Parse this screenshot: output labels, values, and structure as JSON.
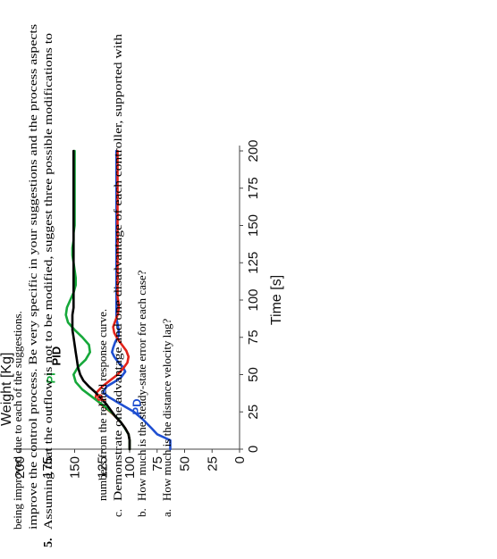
{
  "chart_data": {
    "type": "line",
    "ylabel": "Weight [Kg]",
    "xlabel": "Time [s]",
    "xlim": [
      0,
      200
    ],
    "ylim": [
      0,
      200
    ],
    "x_ticks": [
      "0",
      "25",
      "50",
      "75",
      "100",
      "125",
      "150",
      "175",
      "200"
    ],
    "y_ticks": [
      "0",
      "25",
      "50",
      "75",
      "100",
      "125",
      "150",
      "175",
      "200"
    ],
    "series": [
      {
        "name": "PD",
        "color": "#1f4fd1",
        "x": [
          0,
          6,
          10,
          14,
          20,
          25,
          28,
          31,
          35,
          38,
          42,
          45,
          48,
          52,
          55,
          58,
          62,
          65,
          68,
          72,
          76,
          80,
          84,
          88,
          92,
          96,
          100,
          110,
          120,
          130,
          140,
          150,
          160,
          175,
          190,
          200
        ],
        "y": [
          63,
          63,
          75,
          80,
          88,
          96,
          103,
          110,
          119,
          124,
          121,
          114,
          108,
          104,
          106,
          110,
          114,
          116,
          115,
          113,
          110,
          110,
          111,
          112,
          112,
          112,
          112,
          112,
          112,
          112,
          112,
          112,
          112,
          112,
          112,
          112
        ]
      },
      {
        "name": "P",
        "color": "#e2231a",
        "x": [
          0,
          6,
          10,
          14,
          18,
          22,
          26,
          30,
          34,
          38,
          42,
          46,
          50,
          54,
          58,
          62,
          66,
          70,
          74,
          78,
          82,
          86,
          90,
          94,
          98,
          102,
          110,
          120,
          140,
          160,
          180,
          200
        ],
        "y": [
          100,
          100,
          101,
          104,
          108,
          113,
          119,
          126,
          131,
          130,
          125,
          118,
          111,
          106,
          102,
          101,
          103,
          107,
          111,
          114,
          115,
          113,
          111,
          110,
          110,
          111,
          111,
          111,
          111,
          111,
          111,
          111
        ]
      },
      {
        "name": "PI",
        "color": "#16a83a",
        "x": [
          0,
          6,
          10,
          15,
          20,
          25,
          30,
          35,
          40,
          45,
          50,
          55,
          60,
          65,
          70,
          75,
          80,
          85,
          90,
          95,
          100,
          105,
          110,
          115,
          120,
          125,
          130,
          135,
          140,
          145,
          150,
          160,
          170,
          180,
          190,
          200
        ],
        "y": [
          100,
          100,
          101,
          105,
          110,
          117,
          125,
          134,
          143,
          149,
          151,
          147,
          140,
          136,
          137,
          143,
          150,
          156,
          158,
          157,
          154,
          151,
          149,
          149,
          150,
          151,
          152,
          152,
          151,
          151,
          150,
          150,
          150,
          150,
          150,
          150
        ]
      },
      {
        "name": "PID",
        "color": "#000000",
        "x": [
          0,
          6,
          10,
          14,
          18,
          22,
          26,
          30,
          34,
          38,
          42,
          46,
          50,
          55,
          60,
          65,
          70,
          75,
          80,
          85,
          90,
          95,
          100,
          110,
          120,
          130,
          140,
          150,
          160,
          175,
          190,
          200
        ],
        "y": [
          100,
          100,
          101,
          104,
          108,
          113,
          117,
          121,
          126,
          131,
          137,
          142,
          145,
          147,
          148,
          149,
          150,
          151,
          152,
          152,
          152,
          151,
          151,
          151,
          151,
          151,
          151,
          151,
          151,
          151,
          151,
          151
        ]
      }
    ]
  },
  "questions": {
    "a": {
      "letter": "a.",
      "text": "How much is the distance velocity lag?"
    },
    "b": {
      "letter": "b.",
      "text": "How much is the steady-state error for each case?"
    },
    "c": {
      "letter": "c.",
      "line1": "Demonstrate one advantage and one disadvantage of each controller, supported with",
      "line2": "numbers from the related response curve."
    }
  },
  "problem5": {
    "number": "5.",
    "line1": "Assuming that the outflow is not to be modified, suggest three possible modifications to",
    "line2": "improve the control process. Be very specific in your suggestions and the process aspects",
    "line3": "being improved due to each of the suggestions."
  }
}
